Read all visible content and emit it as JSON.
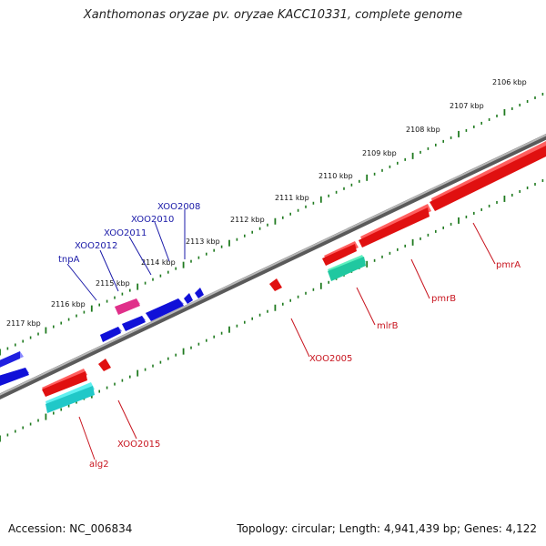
{
  "title": "Xanthomonas oryzae pv. oryzae KACC10331, complete genome",
  "footer": {
    "accession": "Accession: NC_006834",
    "summary": "Topology: circular; Length: 4,941,439 bp; Genes: 4,122"
  },
  "ticks": [
    {
      "label": "2106 kbp"
    },
    {
      "label": "2107 kbp"
    },
    {
      "label": "2108 kbp"
    },
    {
      "label": "2109 kbp"
    },
    {
      "label": "2110 kbp"
    },
    {
      "label": "2111 kbp"
    },
    {
      "label": "2112 kbp"
    },
    {
      "label": "2113 kbp"
    },
    {
      "label": "2114 kbp"
    },
    {
      "label": "2115 kbp"
    },
    {
      "label": "2116 kbp"
    },
    {
      "label": "2117 kbp"
    }
  ],
  "genes": {
    "forward": [
      "XOO2008",
      "XOO2010",
      "XOO2011",
      "XOO2012",
      "tnpA"
    ],
    "reverse": [
      "pmrA",
      "pmrB",
      "mlrB",
      "XOO2005",
      "XOO2015",
      "alg2"
    ]
  },
  "colors": {
    "backbone": "#8a8a8a",
    "tick_track": "#1f7a1f",
    "forward_gene": "#1010e0",
    "reverse_gene": "#e01010",
    "rna_gene": "#e0308a",
    "teal_gene": "#20c8a0",
    "cyan_gene": "#30d8d8",
    "forward_label": "#1a1aa8",
    "reverse_label": "#c8141e"
  }
}
